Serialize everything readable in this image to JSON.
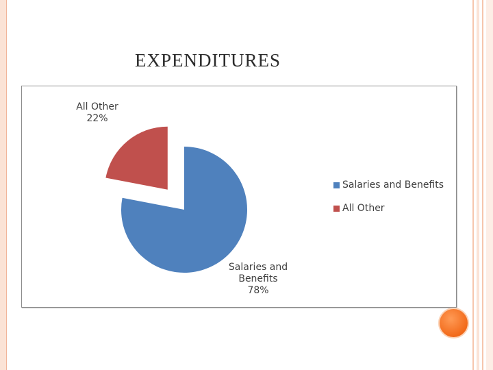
{
  "slide": {
    "title": "EXPENDITURES"
  },
  "colors": {
    "salaries": "#4f81bd",
    "other": "#c0504d",
    "accent": "#f26a1a"
  },
  "chart_data": {
    "type": "pie",
    "exploded": true,
    "legend_position": "right",
    "slices": [
      {
        "name": "Salaries and Benefits",
        "value": 78,
        "label_lines": [
          "Salaries and",
          "Benefits",
          "78%"
        ],
        "color": "#4f81bd"
      },
      {
        "name": "All Other",
        "value": 22,
        "label_lines": [
          "All Other",
          "22%"
        ],
        "color": "#c0504d"
      }
    ],
    "legend": [
      {
        "label": "Salaries and Benefits",
        "color": "#4f81bd"
      },
      {
        "label": "All Other",
        "color": "#c0504d"
      }
    ]
  }
}
